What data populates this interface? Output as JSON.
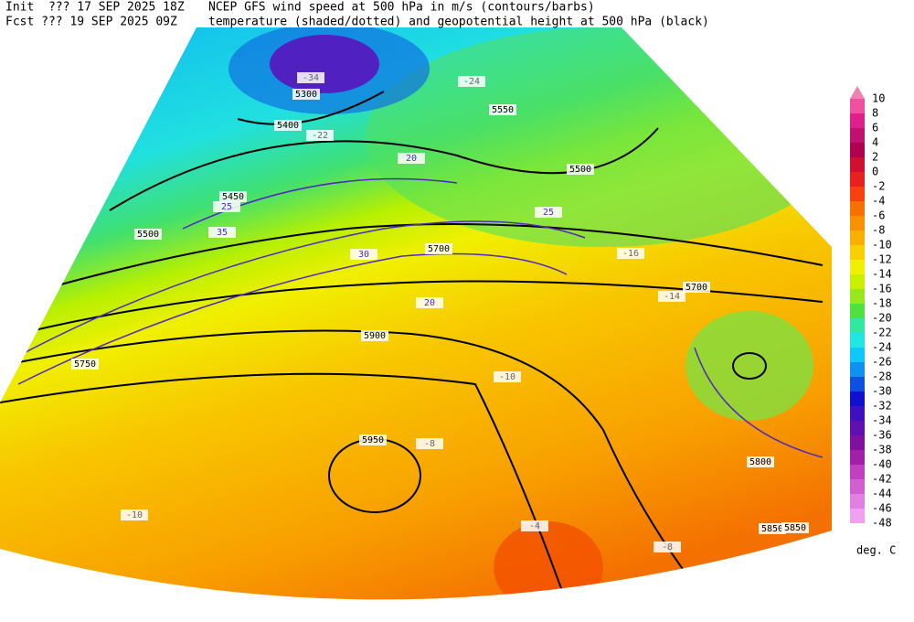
{
  "header": {
    "init": "Init  ??? 17 SEP 2025 18Z",
    "fcst": "Fcst ??? 19 SEP 2025 09Z",
    "title1": "NCEP GFS wind speed at 500 hPa in m/s (contours/barbs)",
    "title2": "temperature (shaded/dotted) and geopotential height at 500 hPa (black)"
  },
  "colorbar": {
    "levels": [
      10,
      8,
      6,
      4,
      2,
      0,
      -2,
      -4,
      -6,
      -8,
      -10,
      -12,
      -14,
      -16,
      -18,
      -20,
      -22,
      -24,
      -26,
      -28,
      -30,
      -32,
      -34,
      -36,
      -38,
      -40,
      -42,
      -44,
      -46,
      -48
    ],
    "colors": [
      "#f080b0",
      "#f050a0",
      "#e0208a",
      "#c01070",
      "#b00050",
      "#d01030",
      "#e82020",
      "#f84010",
      "#f87000",
      "#f89000",
      "#f8b000",
      "#f8d000",
      "#f0f000",
      "#c8f000",
      "#98e820",
      "#50e040",
      "#30e8a0",
      "#20e8e0",
      "#10c8f8",
      "#1090f0",
      "#1050e0",
      "#1010d0",
      "#4010c0",
      "#6010b0",
      "#8010a0",
      "#a020a8",
      "#c040c0",
      "#d060d0",
      "#e080e0",
      "#f0a0f0"
    ],
    "unit": "deg. C"
  },
  "map": {
    "height_labels": [
      "5300",
      "5400",
      "5450",
      "5500",
      "5550",
      "5500",
      "5700",
      "5750",
      "5850",
      "5900",
      "5950",
      "5700",
      "5800",
      "5850"
    ],
    "temp_labels": [
      "-34",
      "-24",
      "-22",
      "-16",
      "-14",
      "-10",
      "-8",
      "-4",
      "-8",
      "-10"
    ],
    "wind_labels": [
      "20",
      "25",
      "30",
      "35",
      "20",
      "25"
    ]
  }
}
